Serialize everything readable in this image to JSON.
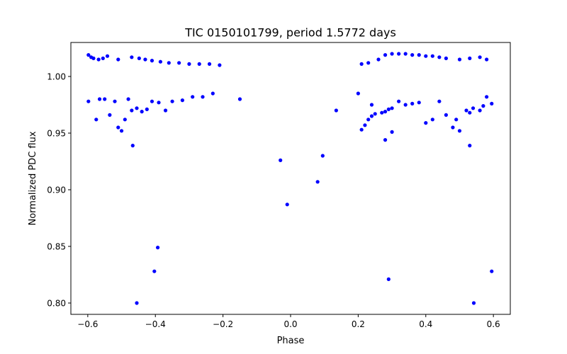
{
  "chart_data": {
    "type": "scatter",
    "title": "TIC 0150101799, period 1.5772 days",
    "xlabel": "Phase",
    "ylabel": "Normalized PDC flux",
    "xlim": [
      -0.65,
      0.65
    ],
    "ylim": [
      0.79,
      1.03
    ],
    "xticks": [
      -0.6,
      -0.4,
      -0.2,
      0.0,
      0.2,
      0.4,
      0.6
    ],
    "xtick_labels": [
      "−0.6",
      "−0.4",
      "−0.2",
      "0.0",
      "0.2",
      "0.4",
      "0.6"
    ],
    "yticks": [
      0.8,
      0.85,
      0.9,
      0.95,
      1.0
    ],
    "ytick_labels": [
      "0.80",
      "0.85",
      "0.90",
      "0.95",
      "1.00"
    ],
    "grid": false,
    "marker_color": "#0000ff",
    "series": [
      {
        "values": [
          [
            -0.598,
            1.019
          ],
          [
            -0.59,
            1.017
          ],
          [
            -0.583,
            1.016
          ],
          [
            -0.568,
            1.015
          ],
          [
            -0.555,
            1.016
          ],
          [
            -0.542,
            1.018
          ],
          [
            -0.51,
            1.015
          ],
          [
            -0.47,
            1.017
          ],
          [
            -0.448,
            1.016
          ],
          [
            -0.43,
            1.015
          ],
          [
            -0.41,
            1.014
          ],
          [
            -0.385,
            1.013
          ],
          [
            -0.36,
            1.012
          ],
          [
            -0.33,
            1.012
          ],
          [
            -0.3,
            1.011
          ],
          [
            -0.27,
            1.011
          ],
          [
            -0.24,
            1.011
          ],
          [
            -0.21,
            1.01
          ],
          [
            0.21,
            1.011
          ],
          [
            0.23,
            1.012
          ],
          [
            0.26,
            1.015
          ],
          [
            0.28,
            1.019
          ],
          [
            0.3,
            1.02
          ],
          [
            0.32,
            1.02
          ],
          [
            0.34,
            1.02
          ],
          [
            0.36,
            1.019
          ],
          [
            0.38,
            1.019
          ],
          [
            0.4,
            1.018
          ],
          [
            0.42,
            1.018
          ],
          [
            0.44,
            1.017
          ],
          [
            0.46,
            1.016
          ],
          [
            0.5,
            1.015
          ],
          [
            0.53,
            1.016
          ],
          [
            0.56,
            1.017
          ],
          [
            0.58,
            1.015
          ],
          [
            -0.598,
            0.978
          ],
          [
            -0.575,
            0.962
          ],
          [
            -0.565,
            0.98
          ],
          [
            -0.55,
            0.98
          ],
          [
            -0.535,
            0.966
          ],
          [
            -0.52,
            0.978
          ],
          [
            -0.51,
            0.955
          ],
          [
            -0.5,
            0.952
          ],
          [
            -0.49,
            0.962
          ],
          [
            -0.48,
            0.98
          ],
          [
            -0.47,
            0.97
          ],
          [
            -0.455,
            0.972
          ],
          [
            -0.44,
            0.969
          ],
          [
            -0.425,
            0.971
          ],
          [
            -0.41,
            0.978
          ],
          [
            -0.39,
            0.977
          ],
          [
            -0.37,
            0.97
          ],
          [
            -0.35,
            0.978
          ],
          [
            -0.32,
            0.979
          ],
          [
            -0.29,
            0.982
          ],
          [
            -0.26,
            0.982
          ],
          [
            -0.23,
            0.985
          ],
          [
            -0.15,
            0.98
          ],
          [
            -0.467,
            0.939
          ],
          [
            0.135,
            0.97
          ],
          [
            0.2,
            0.985
          ],
          [
            0.21,
            0.953
          ],
          [
            0.22,
            0.957
          ],
          [
            0.23,
            0.962
          ],
          [
            0.24,
            0.965
          ],
          [
            0.25,
            0.967
          ],
          [
            0.27,
            0.968
          ],
          [
            0.28,
            0.969
          ],
          [
            0.29,
            0.971
          ],
          [
            0.3,
            0.972
          ],
          [
            0.32,
            0.978
          ],
          [
            0.34,
            0.975
          ],
          [
            0.36,
            0.976
          ],
          [
            0.38,
            0.977
          ],
          [
            0.4,
            0.959
          ],
          [
            0.42,
            0.962
          ],
          [
            0.44,
            0.978
          ],
          [
            0.46,
            0.966
          ],
          [
            0.48,
            0.955
          ],
          [
            0.49,
            0.962
          ],
          [
            0.5,
            0.952
          ],
          [
            0.52,
            0.97
          ],
          [
            0.53,
            0.968
          ],
          [
            0.54,
            0.972
          ],
          [
            0.56,
            0.97
          ],
          [
            0.57,
            0.974
          ],
          [
            0.58,
            0.982
          ],
          [
            0.595,
            0.976
          ],
          [
            0.28,
            0.944
          ],
          [
            0.3,
            0.951
          ],
          [
            0.53,
            0.939
          ],
          [
            0.24,
            0.975
          ],
          [
            -0.03,
            0.926
          ],
          [
            -0.01,
            0.887
          ],
          [
            0.08,
            0.907
          ],
          [
            0.095,
            0.93
          ],
          [
            -0.393,
            0.849
          ],
          [
            -0.403,
            0.828
          ],
          [
            -0.455,
            0.8
          ],
          [
            0.29,
            0.821
          ],
          [
            0.542,
            0.8
          ],
          [
            0.595,
            0.828
          ]
        ]
      }
    ]
  }
}
